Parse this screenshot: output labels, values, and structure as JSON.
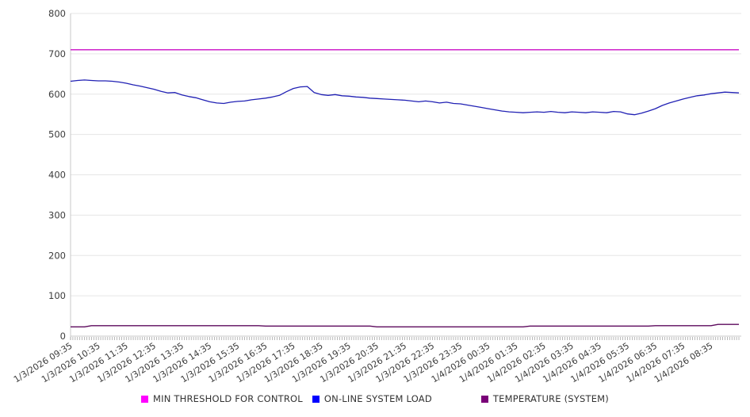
{
  "chart_data": {
    "type": "line",
    "title": "",
    "xlabel": "",
    "ylabel": "",
    "ylim": [
      0,
      800
    ],
    "y_ticks": [
      0,
      100,
      200,
      300,
      400,
      500,
      600,
      700,
      800
    ],
    "grid": "horizontal-light-gray",
    "legend_position": "bottom-center",
    "x_tick_labels": [
      "1/3/2026 09:35",
      "1/3/2026 10:35",
      "1/3/2026 11:35",
      "1/3/2026 12:35",
      "1/3/2026 13:35",
      "1/3/2026 14:35",
      "1/3/2026 15:35",
      "1/3/2026 16:35",
      "1/3/2026 17:35",
      "1/3/2026 18:35",
      "1/3/2026 19:35",
      "1/3/2026 20:35",
      "1/3/2026 21:35",
      "1/3/2026 22:35",
      "1/3/2026 23:35",
      "1/4/2026 00:35",
      "1/4/2026 01:35",
      "1/4/2026 02:35",
      "1/4/2026 03:35",
      "1/4/2026 04:35",
      "1/4/2026 05:35",
      "1/4/2026 06:35",
      "1/4/2026 07:35",
      "1/4/2026 08:35"
    ],
    "x_start_label": "1/3/2026 09:35",
    "x_span_hours": 24,
    "sample_interval_minutes": 15,
    "minor_tick_interval_minutes": 5,
    "axis_color": "#c8c8c8",
    "grid_color": "#e6e6e6",
    "tick_color": "#9a9a9a",
    "label_color": "#3c3c3c",
    "series": [
      {
        "name": "MIN THRESHOLD FOR CONTROL",
        "kind": "threshold",
        "value": 710,
        "line_color": "#cf23cb",
        "legend_color": "#ff00ff"
      },
      {
        "name": "ON-LINE SYSTEM LOAD",
        "kind": "line",
        "line_color": "#2121b4",
        "legend_color": "#0000ff",
        "values": [
          632,
          634,
          635,
          634,
          633,
          633,
          632,
          630,
          627,
          623,
          620,
          616,
          612,
          607,
          603,
          604,
          598,
          594,
          591,
          586,
          581,
          578,
          577,
          580,
          582,
          583,
          586,
          588,
          590,
          593,
          597,
          606,
          614,
          618,
          619,
          604,
          599,
          597,
          599,
          596,
          595,
          593,
          592,
          590,
          589,
          588,
          587,
          586,
          585,
          583,
          581,
          583,
          581,
          578,
          580,
          577,
          576,
          573,
          570,
          567,
          564,
          561,
          558,
          556,
          555,
          554,
          555,
          556,
          555,
          557,
          555,
          554,
          556,
          555,
          554,
          556,
          555,
          554,
          557,
          556,
          551,
          549,
          553,
          558,
          564,
          572,
          578,
          583,
          588,
          592,
          596,
          598,
          601,
          603,
          605,
          604,
          603
        ]
      },
      {
        "name": "TEMPERATURE (SYSTEM)",
        "kind": "line",
        "line_color": "#5d0a5d",
        "legend_color": "#7a0078",
        "values": [
          23,
          23,
          23,
          26,
          26,
          26,
          26,
          26,
          26,
          26,
          26,
          26,
          26,
          26,
          26,
          26,
          26,
          26,
          26,
          26,
          26,
          26,
          26,
          26,
          26,
          26,
          26,
          26,
          25,
          25,
          25,
          25,
          25,
          25,
          25,
          25,
          25,
          25,
          25,
          25,
          25,
          25,
          25,
          25,
          23,
          23,
          23,
          23,
          23,
          23,
          23,
          23,
          23,
          23,
          23,
          23,
          23,
          23,
          23,
          23,
          23,
          23,
          23,
          23,
          23,
          23,
          25,
          25,
          25,
          25,
          25,
          25,
          25,
          25,
          25,
          25,
          25,
          25,
          25,
          25,
          25,
          25,
          25,
          25,
          26,
          26,
          26,
          26,
          26,
          26,
          26,
          26,
          26,
          29,
          29,
          29,
          29
        ]
      }
    ]
  }
}
